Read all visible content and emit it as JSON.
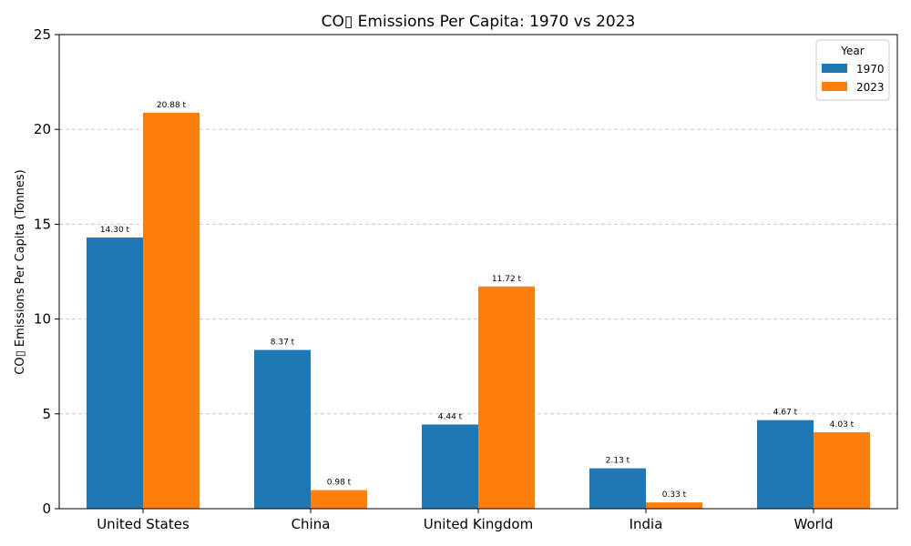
{
  "chart_data": {
    "type": "bar",
    "title": "CO▯ Emissions Per Capita: 1970 vs 2023",
    "xlabel": "",
    "ylabel": "CO▯ Emissions Per Capita (Tonnes)",
    "ylim": [
      0,
      25
    ],
    "yticks": [
      0,
      5,
      10,
      15,
      20,
      25
    ],
    "grid": "y-dashed",
    "categories": [
      "United States",
      "China",
      "United Kingdom",
      "India",
      "World"
    ],
    "series": [
      {
        "name": "1970",
        "color": "#1f77b4",
        "values": [
          14.3,
          8.37,
          4.44,
          2.13,
          4.67
        ],
        "labels": [
          "14.30 t",
          "8.37 t",
          "4.44 t",
          "2.13 t",
          "4.67 t"
        ]
      },
      {
        "name": "2023",
        "color": "#ff7f0e",
        "values": [
          20.88,
          0.98,
          11.72,
          0.33,
          4.03
        ],
        "labels": [
          "20.88 t",
          "0.98 t",
          "11.72 t",
          "0.33 t",
          "4.03 t"
        ]
      }
    ],
    "legend": {
      "title": "Year",
      "position": "top-right"
    }
  }
}
